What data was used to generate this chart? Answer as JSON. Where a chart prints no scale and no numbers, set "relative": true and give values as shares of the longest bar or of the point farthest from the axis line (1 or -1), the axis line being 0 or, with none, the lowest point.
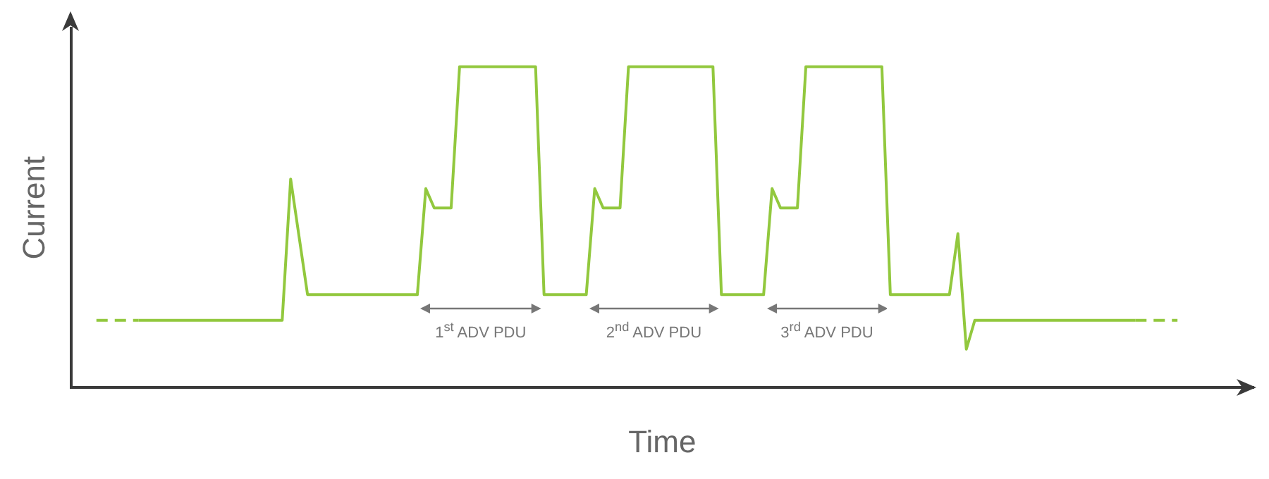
{
  "chart_data": {
    "type": "line",
    "relative": true,
    "xlabel": "Time",
    "ylabel": "Current",
    "grid": false,
    "marker": "none",
    "categories": [
      null,
      null,
      null,
      null,
      null,
      null,
      null,
      null,
      null,
      null,
      null,
      null,
      null,
      null,
      null,
      null,
      null,
      null,
      null,
      null,
      null,
      null,
      null,
      null,
      null,
      null,
      null,
      null,
      null,
      null,
      null,
      null,
      null,
      null,
      null,
      null,
      null,
      null,
      null,
      null,
      null,
      null,
      null,
      null,
      null,
      null,
      null,
      null,
      null,
      null,
      null,
      null,
      null,
      null,
      null,
      null,
      null,
      null,
      null,
      null,
      null,
      null,
      null,
      null,
      null,
      null,
      null,
      null,
      null,
      null,
      null,
      null,
      null,
      null,
      null,
      null,
      null,
      null,
      null,
      null,
      null,
      null,
      null,
      null,
      null,
      null,
      null,
      null,
      null,
      null,
      null,
      null,
      null,
      null,
      null,
      null,
      null,
      null,
      null,
      null,
      null,
      null,
      null,
      null,
      null,
      null,
      null,
      null,
      null,
      null,
      null,
      null,
      null,
      null,
      null,
      null,
      null,
      null,
      null,
      null,
      null,
      null,
      null,
      null,
      null,
      null,
      null,
      null,
      null,
      null,
      null,
      null,
      null,
      null,
      null,
      null,
      null,
      null,
      null,
      null,
      null
    ],
    "series": [
      {
        "color": "#92c83e",
        "line_style": "dashed",
        "values": [
          null,
          null,
          null,
          0.21,
          0.21,
          0.21,
          0.21,
          0.21,
          0.21,
          null,
          null,
          null,
          null,
          null,
          null,
          null,
          null,
          null,
          null,
          null,
          null,
          null,
          null,
          null,
          null,
          null,
          null,
          null,
          null,
          null,
          null,
          null,
          null,
          null,
          null,
          null,
          null,
          null,
          null,
          null,
          null,
          null,
          null,
          null,
          null,
          null,
          null,
          null,
          null,
          null,
          null,
          null,
          null,
          null,
          null,
          null,
          null,
          null,
          null,
          null,
          null,
          null,
          null,
          null,
          null,
          null,
          null,
          null,
          null,
          null,
          null,
          null,
          null,
          null,
          null,
          null,
          null,
          null,
          null,
          null,
          null,
          null,
          null,
          null,
          null,
          null,
          null,
          null,
          null,
          null,
          null,
          null,
          null,
          null,
          null,
          null,
          null,
          null,
          null,
          null,
          null,
          null,
          null,
          null,
          null,
          null,
          null,
          null,
          null,
          null,
          null,
          null,
          null,
          null,
          null,
          null,
          null,
          null,
          null,
          null,
          null,
          null,
          null,
          null,
          null,
          null,
          null,
          null,
          null,
          null,
          null,
          null,
          null,
          null,
          null,
          null,
          null,
          null,
          null,
          null,
          null
        ]
      },
      {
        "color": "#92c83e",
        "line_style": "solid",
        "values": [
          null,
          null,
          null,
          null,
          null,
          null,
          null,
          null,
          0.21,
          0.21,
          0.21,
          0.21,
          0.21,
          0.21,
          0.21,
          0.21,
          0.21,
          0.21,
          0.21,
          0.21,
          0.21,
          0.21,
          0.21,
          0.21,
          0.21,
          0.21,
          0.65,
          0.47,
          0.29,
          0.29,
          0.29,
          0.29,
          0.29,
          0.29,
          0.29,
          0.29,
          0.29,
          0.29,
          0.29,
          0.29,
          0.29,
          0.29,
          0.62,
          0.56,
          0.56,
          0.56,
          1,
          1,
          1,
          1,
          1,
          1,
          1,
          1,
          1,
          1,
          0.29,
          0.29,
          0.29,
          0.29,
          0.29,
          0.29,
          0.62,
          0.56,
          0.56,
          0.56,
          1,
          1,
          1,
          1,
          1,
          1,
          1,
          1,
          1,
          1,
          1,
          0.29,
          0.29,
          0.29,
          0.29,
          0.29,
          0.29,
          0.62,
          0.56,
          0.56,
          0.56,
          1,
          1,
          1,
          1,
          1,
          1,
          1,
          1,
          1,
          1,
          0.29,
          0.29,
          0.29,
          0.29,
          0.29,
          0.29,
          0.29,
          0.29,
          0.48,
          0.12,
          0.21,
          0.21,
          0.21,
          0.21,
          0.21,
          0.21,
          0.21,
          0.21,
          0.21,
          0.21,
          0.21,
          0.21,
          0.21,
          0.21,
          0.21,
          0.21,
          0.21,
          0.21,
          0.21,
          0.21,
          null,
          null,
          null,
          null,
          null,
          null,
          null,
          null,
          null,
          null,
          null,
          null,
          null,
          null
        ]
      },
      {
        "color": "#92c83e",
        "line_style": "dashed",
        "values": [
          null,
          null,
          null,
          null,
          null,
          null,
          null,
          null,
          null,
          null,
          null,
          null,
          null,
          null,
          null,
          null,
          null,
          null,
          null,
          null,
          null,
          null,
          null,
          null,
          null,
          null,
          null,
          null,
          null,
          null,
          null,
          null,
          null,
          null,
          null,
          null,
          null,
          null,
          null,
          null,
          null,
          null,
          null,
          null,
          null,
          null,
          null,
          null,
          null,
          null,
          null,
          null,
          null,
          null,
          null,
          null,
          null,
          null,
          null,
          null,
          null,
          null,
          null,
          null,
          null,
          null,
          null,
          null,
          null,
          null,
          null,
          null,
          null,
          null,
          null,
          null,
          null,
          null,
          null,
          null,
          null,
          null,
          null,
          null,
          null,
          null,
          null,
          null,
          null,
          null,
          null,
          null,
          null,
          null,
          null,
          null,
          null,
          null,
          null,
          null,
          null,
          null,
          null,
          null,
          null,
          null,
          null,
          null,
          null,
          null,
          null,
          null,
          null,
          null,
          null,
          null,
          null,
          null,
          null,
          null,
          null,
          null,
          null,
          null,
          null,
          null,
          0.21,
          0.21,
          0.21,
          0.21,
          0.21,
          0.21,
          null,
          null,
          null,
          null,
          null,
          null,
          null,
          null,
          null
        ]
      }
    ],
    "annotations": [
      "1$^{st}$ ADV PDU",
      "2$^{nd}$ ADV PDU",
      "3$^{rd}$ ADV PDU"
    ]
  }
}
